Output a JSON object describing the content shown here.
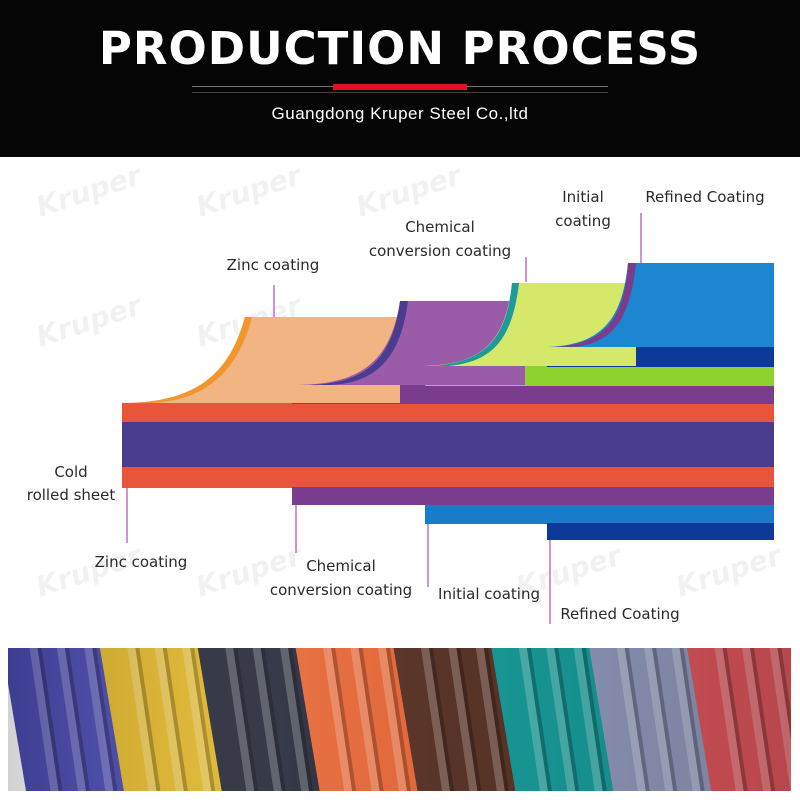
{
  "header": {
    "title": "PRODUCTION PROCESS",
    "subtitle": "Guangdong Kruper Steel Co.,ltd",
    "background": "#050505",
    "accent": "#e3101d"
  },
  "watermark": "Kruper",
  "diagram": {
    "top_labels": {
      "zinc": [
        "Zinc coating"
      ],
      "chemical": [
        "Chemical",
        "conversion coating"
      ],
      "initial": [
        "Initial",
        "coating"
      ],
      "refined": [
        "Refined Coating"
      ]
    },
    "bottom_labels": {
      "base": [
        "Cold",
        "rolled sheet"
      ],
      "zinc": [
        "Zinc coating"
      ],
      "chemical": [
        "Chemical",
        "conversion coating"
      ],
      "initial": [
        "Initial coating"
      ],
      "refined": [
        "Refined Coating"
      ]
    },
    "colors": {
      "base_core": "#4a3d8f",
      "zinc_layer": "#e8553a",
      "zinc_wave": "#f2b483",
      "zinc_edge": "#f0962a",
      "chemical_layer": "#7a3d8e",
      "chemical_wave": "#9a5ba8",
      "initial_layer": "#8fd12e",
      "initial_wave": "#d6e86a",
      "initial_edge": "#1e9a9a",
      "refined_layer": "#0d3a9a",
      "refined_wave": "#1d86d1",
      "refined_bottom": "#1a7cc8",
      "leader": "#c070c0"
    }
  },
  "sheet_colors": [
    "#4a4bb0",
    "#e2b82c",
    "#2a2d3c",
    "#e86a3a",
    "#5a3528",
    "#189a98",
    "#8e96b8",
    "#d8545a"
  ]
}
